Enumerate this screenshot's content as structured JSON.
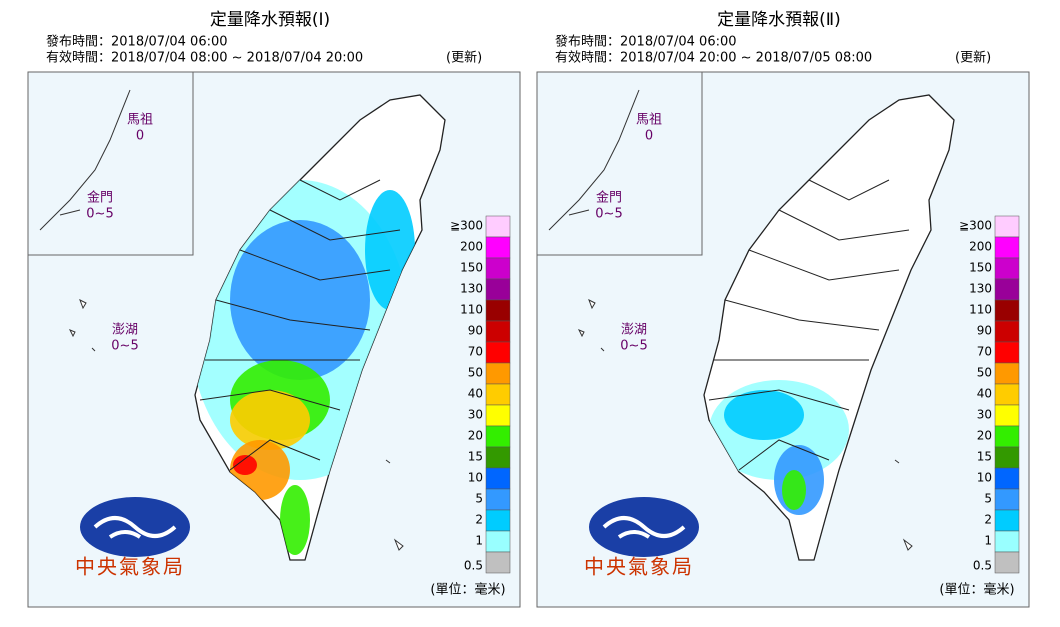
{
  "panels": [
    {
      "title": "定量降水預報(Ⅰ)",
      "issued": "發布時間：2018/07/04 06:00",
      "valid": "有效時間：2018/07/04 08:00 ~ 2018/07/04 20:00",
      "update": "(更新)",
      "islands": [
        {
          "name": "馬祖",
          "value": "0"
        },
        {
          "name": "金門",
          "value": "0~5"
        },
        {
          "name": "澎湖",
          "value": "0~5"
        }
      ]
    },
    {
      "title": "定量降水預報(Ⅱ)",
      "issued": "發布時間：2018/07/04 06:00",
      "valid": "有效時間：2018/07/04 20:00 ~ 2018/07/05 08:00",
      "update": "(更新)",
      "islands": [
        {
          "name": "馬祖",
          "value": "0"
        },
        {
          "name": "金門",
          "value": "0~5"
        },
        {
          "name": "澎湖",
          "value": "0~5"
        }
      ]
    }
  ],
  "legend": {
    "labels": [
      "≧300",
      "200",
      "150",
      "130",
      "110",
      "90",
      "70",
      "50",
      "40",
      "30",
      "20",
      "15",
      "10",
      "5",
      "2",
      "1",
      "0.5"
    ],
    "colors": [
      "#ffccff",
      "#ff00ff",
      "#cc00cc",
      "#990099",
      "#990000",
      "#cc0000",
      "#ff0000",
      "#ff9900",
      "#ffcc00",
      "#ffff00",
      "#33ee00",
      "#339900",
      "#0066ff",
      "#3399ff",
      "#00ccff",
      "#99ffff",
      "#c0c0c0"
    ]
  },
  "logo": "中央氣象局",
  "unit": "(單位：毫米)"
}
